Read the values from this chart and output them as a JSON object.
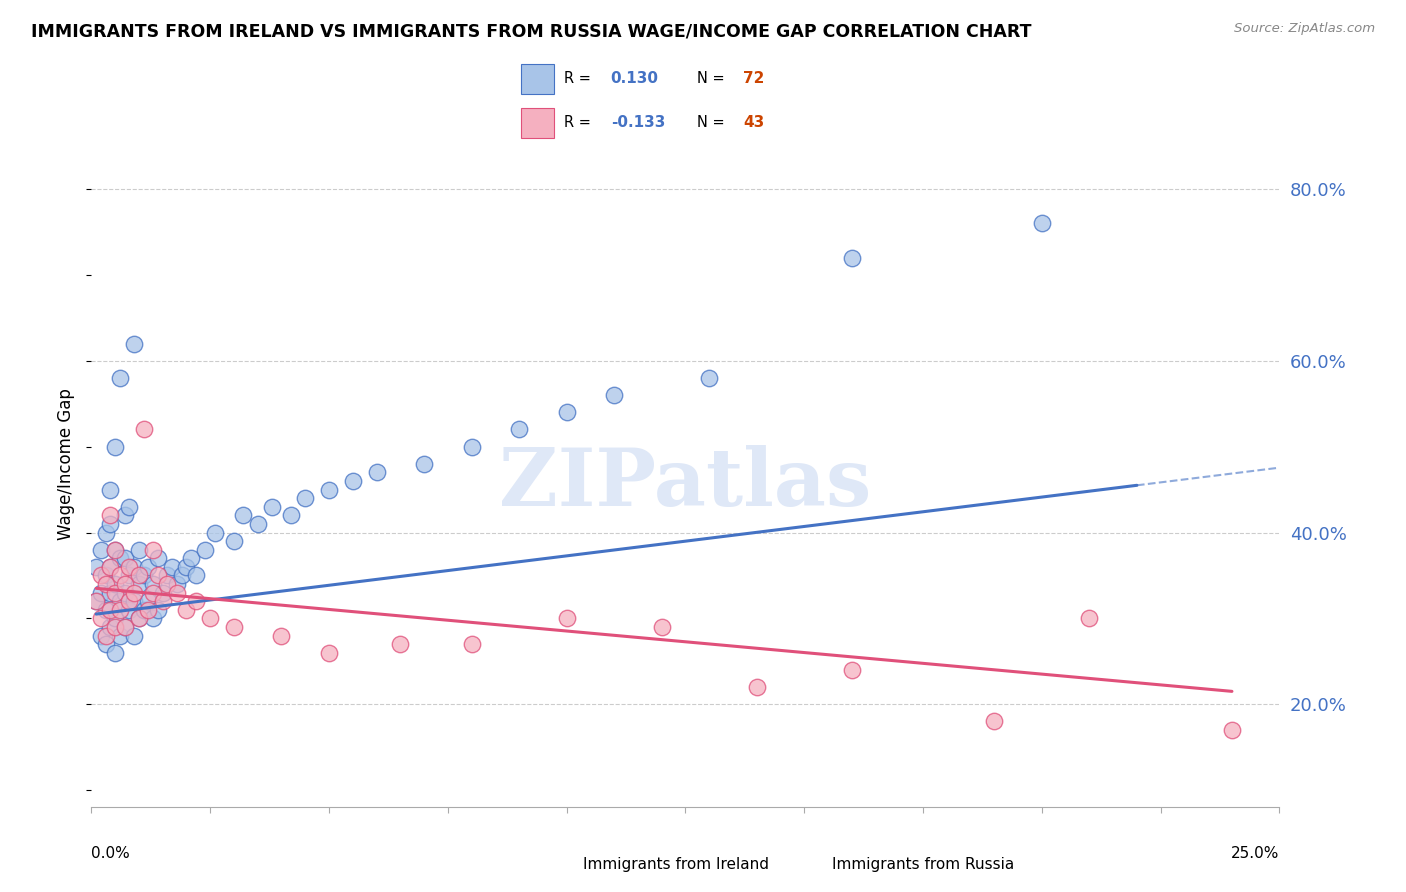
{
  "title": "IMMIGRANTS FROM IRELAND VS IMMIGRANTS FROM RUSSIA WAGE/INCOME GAP CORRELATION CHART",
  "source": "Source: ZipAtlas.com",
  "ylabel": "Wage/Income Gap",
  "y_ticks": [
    0.2,
    0.4,
    0.6,
    0.8
  ],
  "y_tick_labels": [
    "20.0%",
    "40.0%",
    "60.0%",
    "80.0%"
  ],
  "x_min": 0.0,
  "x_max": 0.25,
  "y_min": 0.08,
  "y_max": 0.88,
  "ireland_R": 0.13,
  "ireland_N": 72,
  "russia_R": -0.133,
  "russia_N": 43,
  "ireland_color": "#a8c4e8",
  "russia_color": "#f5b0c0",
  "ireland_line_color": "#4472c4",
  "russia_line_color": "#e0507a",
  "watermark": "ZIPatlas",
  "legend_box_color": "#dce8f8",
  "ireland_scatter_x": [
    0.001,
    0.001,
    0.002,
    0.002,
    0.002,
    0.003,
    0.003,
    0.003,
    0.003,
    0.004,
    0.004,
    0.004,
    0.004,
    0.004,
    0.005,
    0.005,
    0.005,
    0.005,
    0.005,
    0.006,
    0.006,
    0.006,
    0.006,
    0.007,
    0.007,
    0.007,
    0.007,
    0.008,
    0.008,
    0.008,
    0.009,
    0.009,
    0.009,
    0.009,
    0.01,
    0.01,
    0.01,
    0.011,
    0.011,
    0.012,
    0.012,
    0.013,
    0.013,
    0.014,
    0.014,
    0.015,
    0.016,
    0.017,
    0.018,
    0.019,
    0.02,
    0.021,
    0.022,
    0.024,
    0.026,
    0.03,
    0.032,
    0.035,
    0.038,
    0.042,
    0.045,
    0.05,
    0.055,
    0.06,
    0.07,
    0.08,
    0.09,
    0.1,
    0.11,
    0.13,
    0.16,
    0.2
  ],
  "ireland_scatter_y": [
    0.32,
    0.36,
    0.28,
    0.33,
    0.38,
    0.27,
    0.31,
    0.35,
    0.4,
    0.29,
    0.33,
    0.36,
    0.41,
    0.45,
    0.26,
    0.3,
    0.34,
    0.38,
    0.5,
    0.28,
    0.32,
    0.37,
    0.58,
    0.29,
    0.33,
    0.37,
    0.42,
    0.31,
    0.35,
    0.43,
    0.28,
    0.32,
    0.36,
    0.62,
    0.3,
    0.34,
    0.38,
    0.31,
    0.35,
    0.32,
    0.36,
    0.3,
    0.34,
    0.31,
    0.37,
    0.33,
    0.35,
    0.36,
    0.34,
    0.35,
    0.36,
    0.37,
    0.35,
    0.38,
    0.4,
    0.39,
    0.42,
    0.41,
    0.43,
    0.42,
    0.44,
    0.45,
    0.46,
    0.47,
    0.48,
    0.5,
    0.52,
    0.54,
    0.56,
    0.58,
    0.72,
    0.76
  ],
  "russia_scatter_x": [
    0.001,
    0.002,
    0.002,
    0.003,
    0.003,
    0.004,
    0.004,
    0.004,
    0.005,
    0.005,
    0.005,
    0.006,
    0.006,
    0.007,
    0.007,
    0.008,
    0.008,
    0.009,
    0.01,
    0.01,
    0.011,
    0.012,
    0.013,
    0.013,
    0.014,
    0.015,
    0.016,
    0.018,
    0.02,
    0.022,
    0.025,
    0.03,
    0.04,
    0.05,
    0.065,
    0.08,
    0.1,
    0.12,
    0.14,
    0.16,
    0.19,
    0.21,
    0.24
  ],
  "russia_scatter_y": [
    0.32,
    0.3,
    0.35,
    0.28,
    0.34,
    0.31,
    0.36,
    0.42,
    0.29,
    0.33,
    0.38,
    0.31,
    0.35,
    0.29,
    0.34,
    0.32,
    0.36,
    0.33,
    0.3,
    0.35,
    0.52,
    0.31,
    0.33,
    0.38,
    0.35,
    0.32,
    0.34,
    0.33,
    0.31,
    0.32,
    0.3,
    0.29,
    0.28,
    0.26,
    0.27,
    0.27,
    0.3,
    0.29,
    0.22,
    0.24,
    0.18,
    0.3,
    0.17
  ],
  "ireland_line_x": [
    0.001,
    0.22
  ],
  "ireland_line_y": [
    0.305,
    0.455
  ],
  "russia_line_x": [
    0.001,
    0.24
  ],
  "russia_line_y": [
    0.335,
    0.215
  ]
}
